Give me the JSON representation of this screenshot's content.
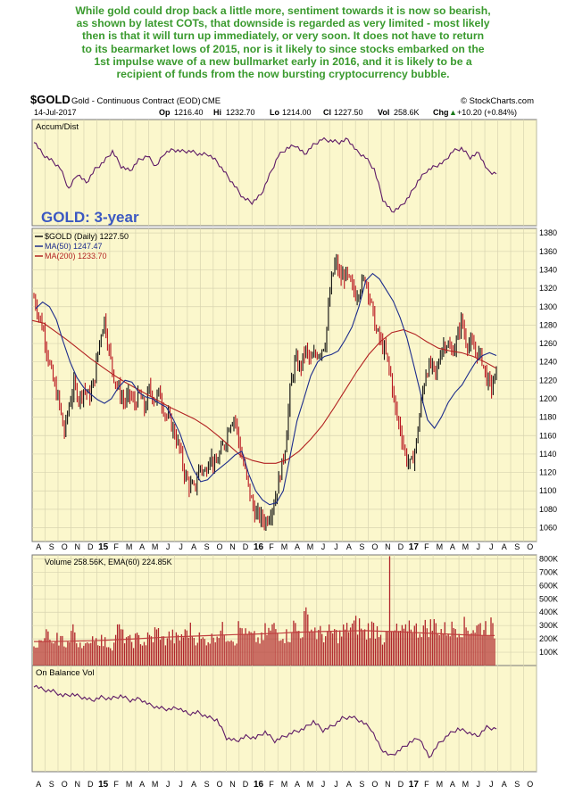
{
  "annotation": {
    "lines": [
      "While gold could drop back a little more, sentiment towards it is now so bearish,",
      "as shown by latest COTs, that downside is regarded as very limited - most likely",
      "then is that it will turn up immediately, or very soon. It does not have to return",
      "to its bearmarket lows of 2015, nor is it likely to since stocks embarked on the",
      "1st impulse wave of a new bullmarket early in 2016, and it is likely to be a",
      "recipient of funds from the now bursting cryptocurrency bubble."
    ]
  },
  "header": {
    "symbol": "$GOLD",
    "name": "Gold - Continuous Contract (EOD)",
    "exchange": "CME",
    "credit": "© StockCharts.com",
    "date": "14-Jul-2017",
    "op_label": "Op",
    "op": "1216.40",
    "hi_label": "Hi",
    "hi": "1232.70",
    "lo_label": "Lo",
    "lo": "1214.00",
    "cl_label": "Cl",
    "cl": "1227.50",
    "vol_label": "Vol",
    "vol": "258.6K",
    "chg_label": "Chg",
    "chg": "+10.20 (+0.84%)",
    "chg_arrow": "▲"
  },
  "colors": {
    "panel_bg": "#fbf7cc",
    "price_bar": "#111111",
    "price_bar_down": "#b8141e",
    "ma50": "#1c2c8c",
    "ma200": "#b22222",
    "indicator": "#5e1a66",
    "volume_bar": "#b0252b",
    "volume_ema": "#c04040",
    "headline": "#3a9a2e",
    "title": "#3b58c2"
  },
  "chart_data": [
    {
      "type": "line",
      "panel": "indicator",
      "label": "Accum/Dist",
      "series": [
        {
          "name": "Accum/Dist",
          "values": [
            0.86,
            0.68,
            0.6,
            0.5,
            0.22,
            0.42,
            0.3,
            0.48,
            0.58,
            0.72,
            0.52,
            0.46,
            0.6,
            0.66,
            0.52,
            0.7,
            0.74,
            0.72,
            0.72,
            0.68,
            0.68,
            0.58,
            0.42,
            0.26,
            0.1,
            0.04,
            0.14,
            0.4,
            0.66,
            0.76,
            0.8,
            0.68,
            0.8,
            0.88,
            0.86,
            0.84,
            0.88,
            0.72,
            0.64,
            0.48,
            0.08,
            -0.08,
            -0.02,
            0.12,
            0.32,
            0.46,
            0.52,
            0.58,
            0.72,
            0.76,
            0.64,
            0.7,
            0.46,
            0.42
          ]
        }
      ],
      "x_range": [
        "Jul 2014",
        "Jul 2017"
      ]
    },
    {
      "type": "line",
      "panel": "price",
      "title": "GOLD: 3-year",
      "legend": [
        {
          "name": "$GOLD (Daily)",
          "value": "1227.50"
        },
        {
          "name": "MA(50)",
          "value": "1247.47"
        },
        {
          "name": "MA(200)",
          "value": "1233.70"
        }
      ],
      "x_labels": [
        "A",
        "S",
        "O",
        "N",
        "D",
        "15",
        "F",
        "M",
        "A",
        "M",
        "J",
        "J",
        "A",
        "S",
        "O",
        "N",
        "D",
        "16",
        "F",
        "M",
        "A",
        "M",
        "J",
        "J",
        "A",
        "S",
        "O",
        "N",
        "D",
        "17",
        "F",
        "M",
        "A",
        "M",
        "J",
        "J",
        "A",
        "S",
        "O"
      ],
      "y_ticks": [
        1060,
        1080,
        1100,
        1120,
        1140,
        1160,
        1180,
        1200,
        1220,
        1240,
        1260,
        1280,
        1300,
        1320,
        1340,
        1360,
        1380
      ],
      "ylim": [
        1045,
        1385
      ],
      "series": [
        {
          "name": "$GOLD (Daily)",
          "values": [
            1310,
            1290,
            1272,
            1240,
            1215,
            1196,
            1162,
            1193,
            1215,
            1200,
            1212,
            1201,
            1220,
            1262,
            1287,
            1250,
            1222,
            1208,
            1195,
            1205,
            1194,
            1205,
            1188,
            1212,
            1198,
            1207,
            1185,
            1177,
            1162,
            1145,
            1118,
            1105,
            1102,
            1128,
            1118,
            1140,
            1125,
            1140,
            1152,
            1175,
            1180,
            1145,
            1122,
            1095,
            1075,
            1072,
            1066,
            1076,
            1092,
            1118,
            1148,
            1212,
            1242,
            1233,
            1254,
            1240,
            1248,
            1252,
            1262,
            1322,
            1350,
            1330,
            1335,
            1324,
            1313,
            1322,
            1332,
            1305,
            1275,
            1262,
            1248,
            1224,
            1185,
            1165,
            1136,
            1127,
            1149,
            1195,
            1230,
            1236,
            1225,
            1255,
            1262,
            1250,
            1260,
            1286,
            1262,
            1258,
            1250,
            1246,
            1223,
            1212,
            1227
          ]
        },
        {
          "name": "MA(50)",
          "values": [
            1298,
            1305,
            1300,
            1286,
            1262,
            1240,
            1223,
            1212,
            1205,
            1199,
            1195,
            1200,
            1212,
            1220,
            1218,
            1207,
            1202,
            1200,
            1195,
            1191,
            1178,
            1162,
            1140,
            1122,
            1110,
            1112,
            1120,
            1126,
            1132,
            1139,
            1143,
            1118,
            1100,
            1090,
            1085,
            1087,
            1100,
            1138,
            1176,
            1200,
            1225,
            1240,
            1246,
            1248,
            1252,
            1264,
            1278,
            1300,
            1328,
            1336,
            1330,
            1318,
            1306,
            1288,
            1266,
            1236,
            1205,
            1177,
            1168,
            1180,
            1196,
            1207,
            1215,
            1228,
            1240,
            1247,
            1250,
            1247
          ]
        },
        {
          "name": "MA(200)",
          "values": [
            1285,
            1282,
            1273,
            1264,
            1254,
            1244,
            1235,
            1226,
            1218,
            1211,
            1204,
            1197,
            1190,
            1184,
            1178,
            1170,
            1160,
            1149,
            1138,
            1133,
            1130,
            1130,
            1134,
            1143,
            1156,
            1171,
            1190,
            1210,
            1230,
            1248,
            1262,
            1272,
            1275,
            1270,
            1262,
            1255,
            1252,
            1250,
            1246,
            1240,
            1233
          ]
        }
      ]
    },
    {
      "type": "bar",
      "panel": "volume",
      "legend": "Volume 258.56K, EMA(60) 224.85K",
      "y_ticks": [
        "100K",
        "200K",
        "300K",
        "400K",
        "500K",
        "600K",
        "700K",
        "800K"
      ],
      "ylim": [
        0,
        830000
      ],
      "series": [
        {
          "name": "Volume",
          "values": [
            190000,
            170000,
            230000,
            150000,
            200000,
            175000,
            260000,
            185000,
            145000,
            230000,
            200000,
            175000,
            160000,
            270000,
            220000,
            185000,
            205000,
            180000,
            210000,
            255000,
            195000,
            225000,
            205000,
            235000,
            270000,
            215000,
            195000,
            205000,
            245000,
            265000,
            235000,
            205000,
            285000,
            230000,
            210000,
            200000,
            260000,
            285000,
            250000,
            230000,
            300000,
            265000,
            360000,
            280000,
            245000,
            230000,
            250000,
            235000,
            270000,
            300000,
            310000,
            245000,
            290000,
            280000,
            205000,
            790000,
            260000,
            250000,
            320000,
            275000,
            290000,
            300000,
            310000,
            270000,
            280000,
            300000,
            295000,
            290000,
            285000,
            300000,
            305000,
            258560
          ]
        }
      ],
      "ema": {
        "name": "EMA(60)",
        "values": [
          180000,
          180000,
          182000,
          184000,
          186000,
          190000,
          195000,
          200000,
          206000,
          212000,
          216000,
          220000,
          224000,
          228000,
          232000,
          234000,
          238000,
          242000,
          248000,
          252000,
          255000,
          258000,
          260000,
          262000,
          258000,
          255000,
          250000,
          244000,
          240000,
          234000,
          230000,
          226000,
          224850
        ]
      }
    },
    {
      "type": "line",
      "panel": "indicator",
      "label": "On Balance Vol",
      "series": [
        {
          "name": "On Balance Vol",
          "values": [
            0.88,
            0.82,
            0.8,
            0.74,
            0.76,
            0.72,
            0.68,
            0.72,
            0.7,
            0.74,
            0.68,
            0.7,
            0.62,
            0.58,
            0.56,
            0.58,
            0.5,
            0.52,
            0.46,
            0.42,
            0.18,
            0.14,
            0.2,
            0.18,
            0.26,
            0.14,
            0.2,
            0.26,
            0.3,
            0.4,
            0.28,
            0.34,
            0.44,
            0.46,
            0.4,
            0.3,
            0.04,
            -0.06,
            0.02,
            0.12,
            0.18,
            -0.08,
            0.1,
            0.22,
            0.3,
            0.26,
            0.2,
            0.32,
            0.3
          ]
        }
      ],
      "x_labels": [
        "A",
        "S",
        "O",
        "N",
        "D",
        "15",
        "F",
        "M",
        "A",
        "M",
        "J",
        "J",
        "A",
        "S",
        "O",
        "N",
        "D",
        "16",
        "F",
        "M",
        "A",
        "M",
        "J",
        "J",
        "A",
        "S",
        "O",
        "N",
        "D",
        "17",
        "F",
        "M",
        "A",
        "M",
        "J",
        "J",
        "A",
        "S",
        "O"
      ]
    }
  ]
}
